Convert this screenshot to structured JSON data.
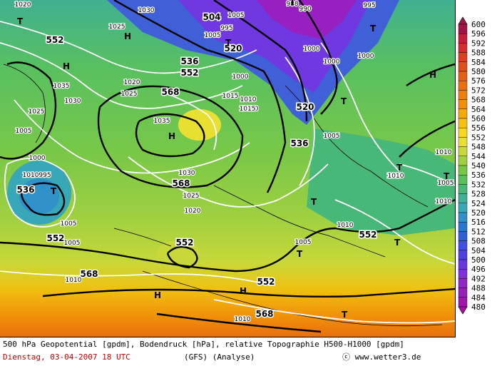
{
  "legend_values": [
    "600",
    "596",
    "592",
    "588",
    "584",
    "580",
    "576",
    "572",
    "568",
    "564",
    "560",
    "556",
    "552",
    "548",
    "544",
    "540",
    "536",
    "532",
    "528",
    "524",
    "520",
    "516",
    "512",
    "508",
    "504",
    "500",
    "496",
    "492",
    "488",
    "484",
    "480"
  ],
  "legend_colors": [
    "#a0144a",
    "#c41e3a",
    "#d42c2c",
    "#dc4020",
    "#e05018",
    "#e46012",
    "#e8700e",
    "#ec800a",
    "#f09008",
    "#f4a80a",
    "#f8c010",
    "#f8d820",
    "#e8e030",
    "#c8d838",
    "#a0d040",
    "#78c848",
    "#58c058",
    "#48b878",
    "#40b098",
    "#38a8b8",
    "#3090c8",
    "#2878d0",
    "#3060d8",
    "#4050e0",
    "#5040e0",
    "#6838e0",
    "#8030d8",
    "#9028c8",
    "#9820b8",
    "#a018a8",
    "#a810a0"
  ],
  "footer": {
    "line1": "500 hPa Geopotential [gpdm], Bodendruck [hPa], relative Topographie H500-H1000 [gpdm]",
    "date": "Dienstag, 03-04-2007  18 UTC",
    "model": "(GFS)  (Analyse)",
    "credit": "ⓒ www.wetter3.de"
  },
  "geo_labels": [
    "552",
    "536",
    "552",
    "536",
    "568",
    "520",
    "504",
    "520",
    "536",
    "552",
    "568",
    "552",
    "568",
    "552",
    "552",
    "568",
    "552",
    "536",
    "552",
    "520",
    "568"
  ],
  "pressure_labels": [
    "1020",
    "1025",
    "1030",
    "1005",
    "995",
    "1005",
    "1000",
    "1010",
    "1035",
    "1030",
    "1025",
    "1025",
    "1020",
    "1015",
    "1010",
    "1035",
    "1000",
    "995",
    "1005",
    "1010",
    "1030",
    "1025",
    "1020",
    "1010",
    "1015",
    "1005",
    "1010",
    "1005",
    "1010",
    "1010",
    "1000",
    "988",
    "990",
    "995",
    "1000",
    "1005",
    "1000",
    "1005",
    "1010",
    "1010",
    "1010",
    "1005"
  ],
  "symbols": [
    "T",
    "H",
    "H",
    "H",
    "T",
    "T",
    "T",
    "H",
    "T",
    "T",
    "T",
    "T",
    "T",
    "H",
    "H",
    "T",
    "T",
    "T"
  ]
}
